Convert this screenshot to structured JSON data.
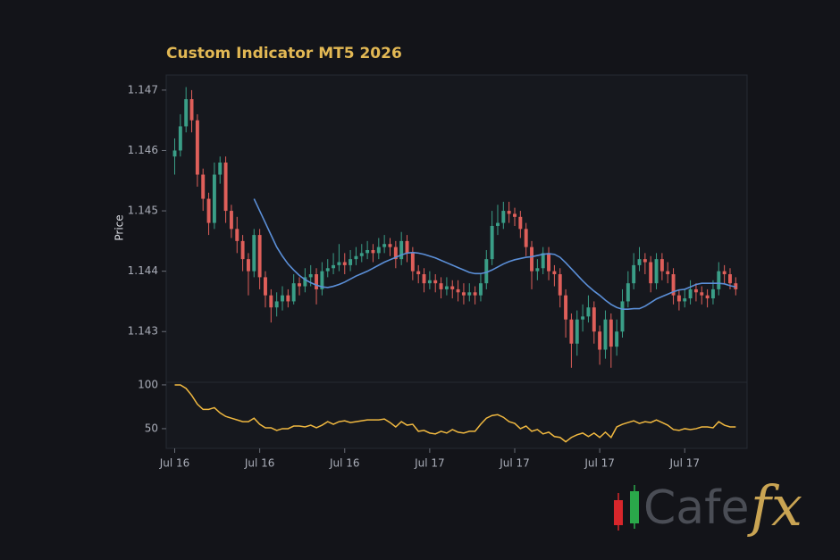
{
  "chart_data": [
    {
      "type": "candlestick",
      "title": "Custom Indicator MT5 2026",
      "ylabel": "Price",
      "up_color": "#3a9e87",
      "down_color": "#df5f5a",
      "open": [
        1.1459,
        1.146,
        1.1464,
        1.14685,
        1.1465,
        1.1456,
        1.1452,
        1.1448,
        1.1456,
        1.1458,
        1.145,
        1.1447,
        1.1445,
        1.1442,
        1.144,
        1.1446,
        1.1439,
        1.1436,
        1.1434,
        1.1435,
        1.1436,
        1.1435,
        1.1438,
        1.14375,
        1.1439,
        1.14395,
        1.1437,
        1.144,
        1.14405,
        1.1441,
        1.14415,
        1.1441,
        1.1442,
        1.14425,
        1.1443,
        1.14435,
        1.1443,
        1.1444,
        1.14445,
        1.1444,
        1.1442,
        1.1445,
        1.1443,
        1.144,
        1.14395,
        1.1438,
        1.14385,
        1.1438,
        1.1437,
        1.14375,
        1.1437,
        1.14365,
        1.1436,
        1.14365,
        1.1436,
        1.1438,
        1.1442,
        1.14475,
        1.1448,
        1.145,
        1.14495,
        1.1449,
        1.1447,
        1.1444,
        1.144,
        1.14405,
        1.1443,
        1.144,
        1.14395,
        1.1436,
        1.1432,
        1.1428,
        1.1432,
        1.14325,
        1.1434,
        1.143,
        1.1427,
        1.1432,
        1.14275,
        1.143,
        1.1435,
        1.1438,
        1.1441,
        1.1442,
        1.14415,
        1.1438,
        1.1442,
        1.144,
        1.14395,
        1.1436,
        1.1435,
        1.14355,
        1.1437,
        1.14365,
        1.1436,
        1.14355,
        1.1437,
        1.144,
        1.14395,
        1.1438
      ],
      "high": [
        1.1462,
        1.1466,
        1.14705,
        1.147,
        1.1466,
        1.1457,
        1.1453,
        1.1458,
        1.1459,
        1.1459,
        1.1451,
        1.1449,
        1.1446,
        1.1443,
        1.1447,
        1.1447,
        1.144,
        1.1437,
        1.14365,
        1.14375,
        1.1437,
        1.14395,
        1.1439,
        1.14405,
        1.1441,
        1.14405,
        1.14415,
        1.1442,
        1.1443,
        1.14445,
        1.1443,
        1.14435,
        1.1444,
        1.14445,
        1.1445,
        1.14445,
        1.14455,
        1.1446,
        1.14455,
        1.1445,
        1.14465,
        1.1446,
        1.1444,
        1.1441,
        1.14405,
        1.144,
        1.14395,
        1.1439,
        1.1439,
        1.14385,
        1.14385,
        1.1438,
        1.1438,
        1.14375,
        1.14395,
        1.14435,
        1.145,
        1.1451,
        1.14515,
        1.14515,
        1.14505,
        1.145,
        1.1448,
        1.1445,
        1.1442,
        1.1444,
        1.1444,
        1.1441,
        1.14405,
        1.1437,
        1.1433,
        1.14335,
        1.14345,
        1.1436,
        1.1435,
        1.1431,
        1.14335,
        1.1433,
        1.1432,
        1.1437,
        1.144,
        1.1443,
        1.1444,
        1.1443,
        1.14425,
        1.1443,
        1.1443,
        1.14415,
        1.14405,
        1.1437,
        1.1437,
        1.14385,
        1.1438,
        1.14375,
        1.1437,
        1.14385,
        1.14415,
        1.1441,
        1.14405,
        1.1439
      ],
      "low": [
        1.1456,
        1.1459,
        1.1463,
        1.1463,
        1.1454,
        1.145,
        1.1446,
        1.1447,
        1.14545,
        1.1448,
        1.14455,
        1.1443,
        1.144,
        1.1436,
        1.1439,
        1.1437,
        1.1434,
        1.14315,
        1.14325,
        1.14335,
        1.1434,
        1.14345,
        1.1436,
        1.14365,
        1.14375,
        1.14345,
        1.1436,
        1.1439,
        1.14395,
        1.144,
        1.14395,
        1.144,
        1.1441,
        1.14415,
        1.1442,
        1.14415,
        1.1442,
        1.1443,
        1.14425,
        1.14405,
        1.1441,
        1.14415,
        1.14385,
        1.1438,
        1.14365,
        1.1437,
        1.14365,
        1.14355,
        1.1436,
        1.14355,
        1.1435,
        1.14345,
        1.1435,
        1.14345,
        1.1435,
        1.1437,
        1.1441,
        1.1446,
        1.1447,
        1.1448,
        1.14475,
        1.14455,
        1.14425,
        1.1437,
        1.14385,
        1.14395,
        1.14385,
        1.14375,
        1.1434,
        1.1429,
        1.1424,
        1.1426,
        1.143,
        1.14315,
        1.1428,
        1.14245,
        1.14255,
        1.1424,
        1.1426,
        1.1429,
        1.1434,
        1.1437,
        1.144,
        1.14395,
        1.14365,
        1.1437,
        1.14385,
        1.1438,
        1.14345,
        1.14335,
        1.1434,
        1.14345,
        1.1435,
        1.14345,
        1.1434,
        1.14345,
        1.1436,
        1.1438,
        1.1437,
        1.1436
      ],
      "close": [
        1.146,
        1.1464,
        1.14685,
        1.1465,
        1.1456,
        1.1452,
        1.1448,
        1.1456,
        1.1458,
        1.145,
        1.1447,
        1.1445,
        1.1442,
        1.144,
        1.1446,
        1.1439,
        1.1436,
        1.1434,
        1.1435,
        1.1436,
        1.1435,
        1.1438,
        1.14375,
        1.1439,
        1.14395,
        1.1437,
        1.144,
        1.14405,
        1.1441,
        1.14415,
        1.1441,
        1.1442,
        1.14425,
        1.1443,
        1.14435,
        1.1443,
        1.1444,
        1.14445,
        1.1444,
        1.1442,
        1.1445,
        1.1443,
        1.144,
        1.14395,
        1.1438,
        1.14385,
        1.1438,
        1.1437,
        1.14375,
        1.1437,
        1.14365,
        1.1436,
        1.14365,
        1.1436,
        1.1438,
        1.1442,
        1.14475,
        1.1448,
        1.145,
        1.14495,
        1.1449,
        1.1447,
        1.1444,
        1.144,
        1.14405,
        1.1443,
        1.144,
        1.14395,
        1.1436,
        1.1432,
        1.1428,
        1.1432,
        1.14325,
        1.1434,
        1.143,
        1.1427,
        1.1432,
        1.14275,
        1.143,
        1.1435,
        1.1438,
        1.1441,
        1.1442,
        1.14415,
        1.1438,
        1.1442,
        1.144,
        1.14395,
        1.1436,
        1.1435,
        1.14355,
        1.1437,
        1.14365,
        1.1436,
        1.14355,
        1.1437,
        1.144,
        1.14395,
        1.1438,
        1.1437
      ],
      "overlay": {
        "color": "#5b8fd8",
        "values": [
          null,
          null,
          null,
          null,
          null,
          null,
          null,
          null,
          null,
          null,
          null,
          null,
          null,
          null,
          1.1452,
          1.145,
          1.1448,
          1.1446,
          1.1444,
          1.14425,
          1.14412,
          1.14402,
          1.14393,
          1.14386,
          1.14381,
          1.14377,
          1.14374,
          1.14373,
          1.14375,
          1.14378,
          1.14382,
          1.14387,
          1.14392,
          1.14396,
          1.144,
          1.14405,
          1.1441,
          1.14415,
          1.14419,
          1.14423,
          1.14427,
          1.1443,
          1.14431,
          1.1443,
          1.14428,
          1.14425,
          1.14422,
          1.14418,
          1.14414,
          1.1441,
          1.14406,
          1.14402,
          1.14398,
          1.14396,
          1.14396,
          1.14398,
          1.14402,
          1.14407,
          1.14412,
          1.14416,
          1.14419,
          1.14421,
          1.14423,
          1.14424,
          1.14426,
          1.14428,
          1.14429,
          1.14428,
          1.14423,
          1.14414,
          1.14404,
          1.14394,
          1.14384,
          1.14375,
          1.14367,
          1.1436,
          1.14352,
          1.14345,
          1.1434,
          1.14337,
          1.14337,
          1.14338,
          1.14338,
          1.14342,
          1.14348,
          1.14354,
          1.14358,
          1.14362,
          1.14366,
          1.14369,
          1.1437,
          1.14374,
          1.14378,
          1.1438,
          1.1438,
          1.1438,
          1.1438,
          1.14379,
          1.14376,
          1.14374
        ]
      },
      "xlim": [
        -1.5,
        101
      ],
      "ylim": [
        1.14216,
        1.14725
      ],
      "yticks": [
        1.143,
        1.144,
        1.145,
        1.146,
        1.147
      ]
    },
    {
      "type": "line",
      "color": "#f0b840",
      "values": [
        100,
        100,
        96,
        88,
        78,
        72,
        72,
        74,
        68,
        64,
        62,
        60,
        58,
        58,
        62,
        55,
        51,
        51,
        48,
        50,
        50,
        53,
        53,
        52,
        54,
        51,
        54,
        58,
        55,
        58,
        59,
        57,
        58,
        59,
        60,
        60,
        60,
        61,
        57,
        52,
        58,
        54,
        55,
        47,
        48,
        45,
        44,
        47,
        45,
        49,
        46,
        45,
        47,
        47,
        55,
        62,
        65,
        66,
        63,
        58,
        56,
        50,
        53,
        47,
        49,
        44,
        46,
        41,
        40,
        35,
        40,
        43,
        45,
        41,
        45,
        40,
        46,
        40,
        52,
        55,
        57,
        59,
        56,
        58,
        57,
        60,
        57,
        54,
        49,
        48,
        50,
        49,
        50,
        52,
        52,
        51,
        58,
        54,
        52,
        52
      ],
      "xlim": [
        -1.5,
        101
      ],
      "ylim": [
        27.5,
        103
      ],
      "yticks": [
        50,
        100
      ],
      "xticks": [
        {
          "value": 0,
          "label": "Jul 16"
        },
        {
          "value": 15,
          "label": "Jul 16"
        },
        {
          "value": 30,
          "label": "Jul 16"
        },
        {
          "value": 45,
          "label": "Jul 17"
        },
        {
          "value": 60,
          "label": "Jul 17"
        },
        {
          "value": 75,
          "label": "Jul 17"
        },
        {
          "value": 90,
          "label": "Jul 17"
        }
      ]
    }
  ],
  "watermark": {
    "text": "Cafe",
    "accent": "fx"
  }
}
